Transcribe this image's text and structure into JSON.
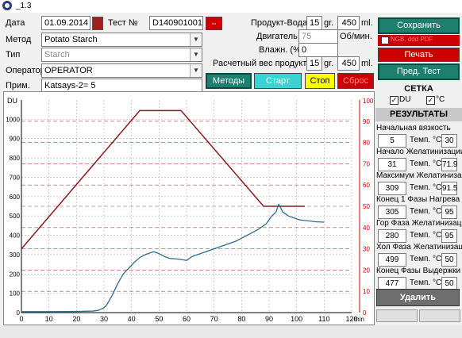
{
  "window": {
    "title": "_1.3"
  },
  "form": {
    "date_label": "Дата",
    "date_value": "01.09.2014",
    "test_label": "Тест №",
    "test_value": "D140901001",
    "method_label": "Метод",
    "method_value": "Potato Starch",
    "type_label": "Тип",
    "type_value": "Starch",
    "operator_label": "Оператор",
    "operator_value": "OPERATOR",
    "note_label": "Прим.",
    "note_value": "Katsays-2= 5"
  },
  "params": {
    "product_water_label": "Продукт-Вода",
    "product_value": "15",
    "product_unit": "gr.",
    "water_value": "450",
    "water_unit": "ml.",
    "motor_label": "Двигатель",
    "motor_value": "75",
    "motor_unit": "Об/мин.",
    "moisture_label": "Влажн. (%)",
    "moisture_value": "0",
    "calc_label": "Расчетный вес продукта",
    "calc_value": "15",
    "calc_unit": "gr.",
    "calc_water": "450",
    "calc_water_unit": "ml."
  },
  "buttons": {
    "methods": "Методы",
    "start": "Старт",
    "stop": "Стоп",
    "reset": "Сброс",
    "save": "Сохранить",
    "pdf": "NGB. ddd PDF",
    "print": "Печать",
    "prev_test": "Пред. Тест",
    "delete": "Удалить"
  },
  "grid_panel": {
    "title": "СЕТКА",
    "du_label": "DU",
    "c_label": "°C"
  },
  "results": {
    "title": "РЕЗУЛЬТАТЫ",
    "temp_label": "Темп. °C",
    "items": [
      {
        "name": "Начальная вязкость",
        "value": "5",
        "temp": "30"
      },
      {
        "name": "Начало Желатинизации",
        "value": "31",
        "temp": "71.9"
      },
      {
        "name": "Максимум Желатинизации",
        "value": "309",
        "temp": "91.5"
      },
      {
        "name": "Конец 1 Фазы Нагрева",
        "value": "305",
        "temp": "95"
      },
      {
        "name": "Гор Фаза Желатинизации",
        "value": "280",
        "temp": "95"
      },
      {
        "name": "Хол Фаза Желатинизации",
        "value": "499",
        "temp": "50"
      },
      {
        "name": "Конец Фазы Выдержки",
        "value": "477",
        "temp": "50"
      }
    ]
  },
  "chart_data": {
    "type": "line",
    "left_axis_label": "DU",
    "right_axis_label": "100°C",
    "x_unit": "min",
    "xlim": [
      0,
      120
    ],
    "ylim_left": [
      0,
      1100
    ],
    "ylim_right": [
      0,
      100
    ],
    "x_ticks": [
      "0",
      "10",
      "20",
      "30",
      "40",
      "50",
      "60",
      "70",
      "80",
      "90",
      "100",
      "110",
      "120"
    ],
    "left_ticks": [
      "0",
      "100",
      "200",
      "300",
      "400",
      "500",
      "600",
      "700",
      "800",
      "900",
      "1000"
    ],
    "right_ticks": [
      "0",
      "10",
      "20",
      "30",
      "40",
      "50",
      "60",
      "70",
      "80",
      "90"
    ],
    "grid": true,
    "temperature": {
      "color": "#8b1a1a",
      "x": [
        0,
        43,
        58,
        88,
        103
      ],
      "y": [
        30,
        95,
        95,
        50,
        50
      ]
    },
    "viscosity": {
      "color": "#2e6a8e",
      "x": [
        0,
        10,
        20,
        26,
        28,
        30,
        31,
        33,
        35,
        37,
        39,
        41,
        43,
        45,
        47,
        48,
        50,
        52,
        54,
        56,
        58,
        60,
        62,
        64,
        66,
        70,
        74,
        78,
        82,
        86,
        89,
        91,
        92.5,
        93.5,
        95,
        97,
        99,
        101,
        104,
        107,
        110
      ],
      "y": [
        5,
        5,
        6,
        8,
        12,
        25,
        40,
        90,
        150,
        200,
        230,
        260,
        285,
        300,
        310,
        315,
        305,
        290,
        280,
        278,
        275,
        270,
        290,
        300,
        310,
        330,
        350,
        370,
        400,
        430,
        460,
        500,
        520,
        560,
        520,
        500,
        490,
        480,
        475,
        470,
        468
      ]
    }
  }
}
